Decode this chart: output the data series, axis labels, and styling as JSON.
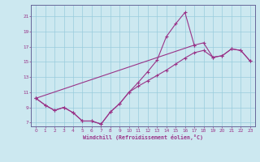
{
  "xlabel": "Windchill (Refroidissement éolien,°C)",
  "bg_color": "#cce8f0",
  "line_color": "#993388",
  "grid_color": "#99ccdd",
  "spine_color": "#666699",
  "xlim": [
    -0.5,
    23.5
  ],
  "ylim": [
    6.5,
    22.5
  ],
  "xticks": [
    0,
    1,
    2,
    3,
    4,
    5,
    6,
    7,
    8,
    9,
    10,
    11,
    12,
    13,
    14,
    15,
    16,
    17,
    18,
    19,
    20,
    21,
    22,
    23
  ],
  "yticks": [
    7,
    9,
    11,
    13,
    15,
    17,
    19,
    21
  ],
  "line1_x": [
    0,
    1,
    2,
    3,
    4,
    5,
    6,
    7,
    8,
    9,
    10,
    11,
    12,
    13,
    14,
    15,
    16,
    17
  ],
  "line1_y": [
    10.2,
    9.3,
    8.6,
    9.0,
    8.3,
    7.2,
    7.2,
    6.8,
    8.4,
    9.5,
    11.0,
    12.3,
    13.7,
    15.2,
    18.3,
    20.0,
    21.5,
    17.2
  ],
  "line2_x": [
    0,
    1,
    2,
    3,
    4,
    5,
    6,
    7,
    8,
    9,
    10,
    11,
    12,
    13,
    14,
    15,
    16,
    17,
    18,
    19,
    20,
    21,
    22,
    23
  ],
  "line2_y": [
    10.2,
    9.3,
    8.6,
    9.0,
    8.3,
    7.2,
    7.2,
    6.8,
    8.4,
    9.5,
    11.0,
    11.8,
    12.5,
    13.2,
    13.9,
    14.7,
    15.5,
    16.2,
    16.5,
    15.6,
    15.8,
    16.7,
    16.5,
    15.1
  ],
  "line3_x": [
    0,
    17,
    18,
    19,
    20,
    21,
    22,
    23
  ],
  "line3_y": [
    10.2,
    17.2,
    17.5,
    15.6,
    15.8,
    16.7,
    16.5,
    15.1
  ]
}
